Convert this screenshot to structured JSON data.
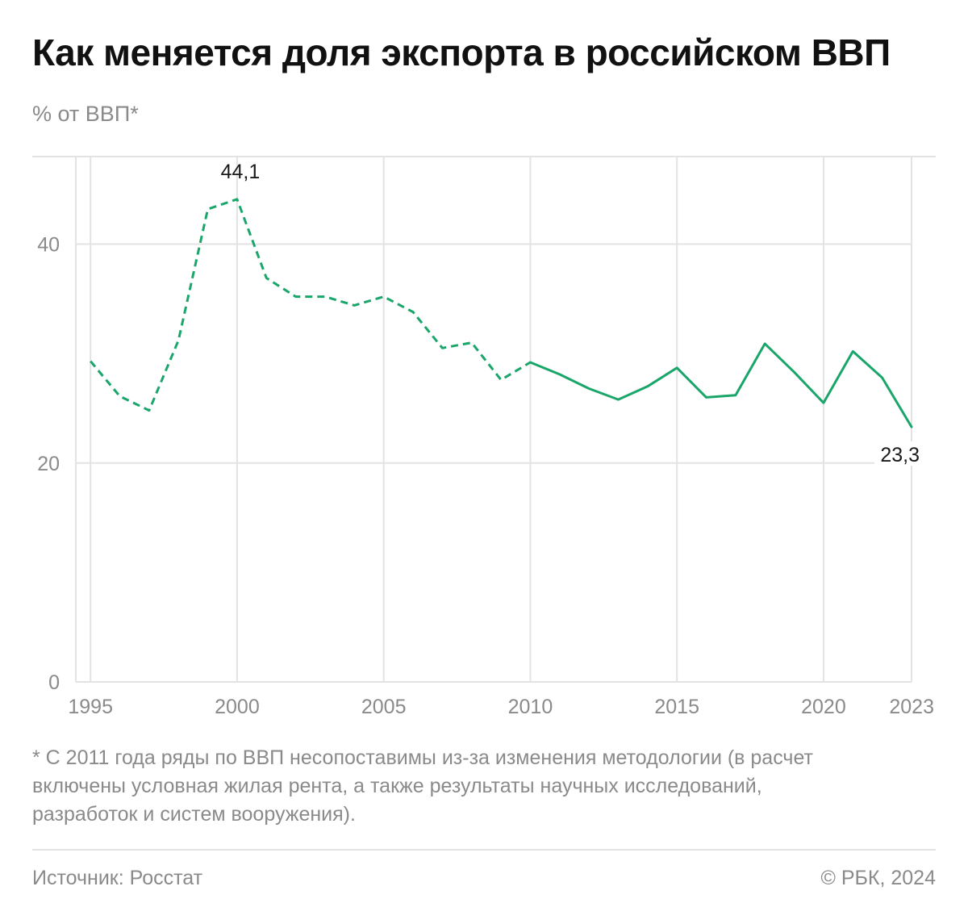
{
  "title": "Как меняется доля экспорта в российском ВВП",
  "subtitle": "% от ВВП*",
  "footnote": "* С 2011 года ряды по ВВП несопоставимы из-за изменения методологии (в расчет включены условная жилая рента, а также результаты научных исследований, разработок и систем вооружения).",
  "source": "Источник: Росстат",
  "copyright": "© РБК, 2024",
  "colors": {
    "line": "#1aa66a",
    "grid": "#e3e3e3",
    "muted": "#8a8a8a"
  },
  "chart_data": {
    "type": "line",
    "title": "Как меняется доля экспорта в российском ВВП",
    "ylabel": "% от ВВП*",
    "xlabel": "",
    "xlim": [
      1994.5,
      2023
    ],
    "ylim": [
      0,
      48
    ],
    "y_ticks": [
      0,
      20,
      40
    ],
    "x_ticks": [
      1995,
      2000,
      2005,
      2010,
      2015,
      2020,
      2023
    ],
    "grid": true,
    "x": [
      1995,
      1996,
      1997,
      1998,
      1999,
      2000,
      2001,
      2002,
      2003,
      2004,
      2005,
      2006,
      2007,
      2008,
      2009,
      2010,
      2011,
      2012,
      2013,
      2014,
      2015,
      2016,
      2017,
      2018,
      2019,
      2020,
      2021,
      2022,
      2023
    ],
    "y": [
      29.3,
      26.1,
      24.8,
      31.2,
      43.2,
      44.1,
      36.9,
      35.2,
      35.2,
      34.4,
      35.2,
      33.8,
      30.5,
      31.0,
      27.6,
      29.2,
      28.1,
      26.8,
      25.8,
      27.0,
      28.7,
      26.0,
      26.2,
      30.9,
      28.3,
      25.5,
      30.2,
      27.8,
      23.3
    ],
    "dashed_until": 2010,
    "annotations": [
      {
        "x": 2000,
        "y": 44.1,
        "label": "44,1",
        "position": "above"
      },
      {
        "x": 2023,
        "y": 23.3,
        "label": "23,3",
        "position": "below"
      }
    ]
  }
}
